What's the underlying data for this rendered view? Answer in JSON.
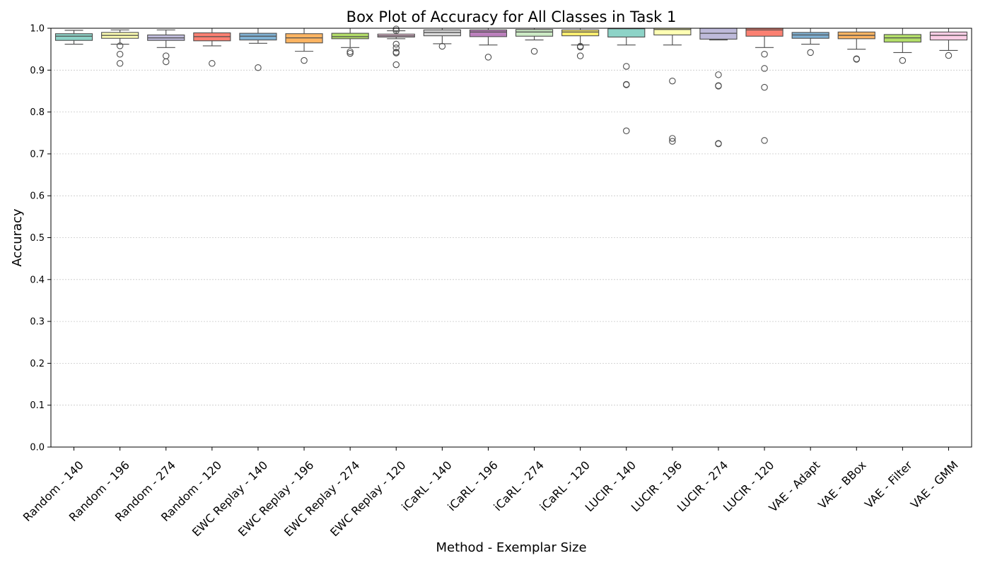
{
  "chart_data": {
    "type": "box",
    "title": "Box Plot of Accuracy for All Classes in Task 1",
    "xlabel": "Method - Exemplar Size",
    "ylabel": "Accuracy",
    "ylim": [
      0.0,
      1.0
    ],
    "yticks": [
      "0.0",
      "0.1",
      "0.2",
      "0.3",
      "0.4",
      "0.5",
      "0.6",
      "0.7",
      "0.8",
      "0.9",
      "1.0"
    ],
    "grid": "horizontal dotted",
    "categories": [
      "Random - 140",
      "Random - 196",
      "Random - 274",
      "Random - 120",
      "EWC Replay - 140",
      "EWC Replay - 196",
      "EWC Replay - 274",
      "EWC Replay - 120",
      "iCaRL - 140",
      "iCaRL - 196",
      "iCaRL - 274",
      "iCaRL - 120",
      "LUCIR - 140",
      "LUCIR - 196",
      "LUCIR - 274",
      "LUCIR - 120",
      "VAE - Adapt",
      "VAE - BBox",
      "VAE - Filter",
      "VAE - GMM"
    ],
    "boxes": [
      {
        "whislo": 0.962,
        "q1": 0.971,
        "median": 0.981,
        "q3": 0.987,
        "whishi": 0.995,
        "fliers": [],
        "color": "#8dd3c7"
      },
      {
        "whislo": 0.962,
        "q1": 0.976,
        "median": 0.983,
        "q3": 0.99,
        "whishi": 0.996,
        "fliers": [
          0.958,
          0.938,
          0.916
        ],
        "color": "#ffffb3"
      },
      {
        "whislo": 0.954,
        "q1": 0.971,
        "median": 0.977,
        "q3": 0.984,
        "whishi": 0.996,
        "fliers": [
          0.934,
          0.92
        ],
        "color": "#bebada"
      },
      {
        "whislo": 0.958,
        "q1": 0.97,
        "median": 0.98,
        "q3": 0.989,
        "whishi": 1.0,
        "fliers": [
          0.916
        ],
        "color": "#fb8072"
      },
      {
        "whislo": 0.964,
        "q1": 0.972,
        "median": 0.981,
        "q3": 0.988,
        "whishi": 1.0,
        "fliers": [
          0.906
        ],
        "color": "#80b1d3"
      },
      {
        "whislo": 0.945,
        "q1": 0.965,
        "median": 0.977,
        "q3": 0.987,
        "whishi": 1.0,
        "fliers": [
          0.923
        ],
        "color": "#fdb462"
      },
      {
        "whislo": 0.954,
        "q1": 0.975,
        "median": 0.98,
        "q3": 0.988,
        "whishi": 1.0,
        "fliers": [
          0.944,
          0.94
        ],
        "color": "#b3de69"
      },
      {
        "whislo": 0.975,
        "q1": 0.979,
        "median": 0.982,
        "q3": 0.986,
        "whishi": 0.994,
        "fliers": [
          0.998,
          0.994,
          0.962,
          0.953,
          0.943,
          0.941,
          0.913
        ],
        "color": "#fccde5"
      },
      {
        "whislo": 0.963,
        "q1": 0.982,
        "median": 0.99,
        "q3": 0.996,
        "whishi": 1.0,
        "fliers": [
          0.957
        ],
        "color": "#d9d9d9"
      },
      {
        "whislo": 0.96,
        "q1": 0.98,
        "median": 0.991,
        "q3": 0.996,
        "whishi": 1.0,
        "fliers": [
          0.931
        ],
        "color": "#bc80bd"
      },
      {
        "whislo": 0.972,
        "q1": 0.981,
        "median": 0.991,
        "q3": 0.997,
        "whishi": 1.0,
        "fliers": [
          0.945
        ],
        "color": "#ccebc5"
      },
      {
        "whislo": 0.96,
        "q1": 0.982,
        "median": 0.991,
        "q3": 0.996,
        "whishi": 1.0,
        "fliers": [
          0.957,
          0.955,
          0.934
        ],
        "color": "#ffed6f"
      },
      {
        "whislo": 0.96,
        "q1": 0.979,
        "median": 0.999,
        "q3": 1.0,
        "whishi": 1.0,
        "fliers": [
          0.909,
          0.866,
          0.865,
          0.755
        ],
        "color": "#8dd3c7"
      },
      {
        "whislo": 0.96,
        "q1": 0.984,
        "median": 0.997,
        "q3": 1.0,
        "whishi": 1.0,
        "fliers": [
          0.874,
          0.737,
          0.73
        ],
        "color": "#ffffb3"
      },
      {
        "whislo": 0.972,
        "q1": 0.974,
        "median": 0.988,
        "q3": 1.0,
        "whishi": 1.0,
        "fliers": [
          0.889,
          0.863,
          0.862,
          0.725,
          0.724
        ],
        "color": "#bebada"
      },
      {
        "whislo": 0.954,
        "q1": 0.981,
        "median": 0.996,
        "q3": 1.0,
        "whishi": 1.0,
        "fliers": [
          0.938,
          0.904,
          0.859,
          0.732
        ],
        "color": "#fb8072"
      },
      {
        "whislo": 0.962,
        "q1": 0.976,
        "median": 0.984,
        "q3": 0.99,
        "whishi": 1.0,
        "fliers": [
          0.942
        ],
        "color": "#80b1d3"
      },
      {
        "whislo": 0.95,
        "q1": 0.975,
        "median": 0.983,
        "q3": 0.991,
        "whishi": 1.0,
        "fliers": [
          0.927,
          0.926
        ],
        "color": "#fdb462"
      },
      {
        "whislo": 0.942,
        "q1": 0.967,
        "median": 0.977,
        "q3": 0.985,
        "whishi": 1.0,
        "fliers": [
          0.923
        ],
        "color": "#b3de69"
      },
      {
        "whislo": 0.947,
        "q1": 0.972,
        "median": 0.983,
        "q3": 0.991,
        "whishi": 1.0,
        "fliers": [
          0.935
        ],
        "color": "#fccde5"
      }
    ]
  }
}
